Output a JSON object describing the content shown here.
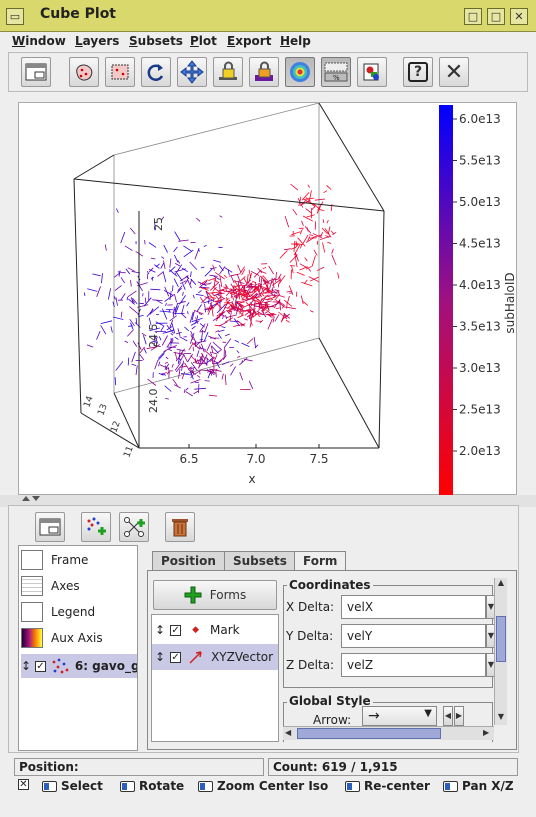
{
  "window": {
    "title": "Cube Plot",
    "controls": [
      "▭",
      "□",
      "✕"
    ]
  },
  "menu": [
    "Window",
    "Layers",
    "Subsets",
    "Plot",
    "Export",
    "Help"
  ],
  "toolbar": {
    "icons": [
      "new-window-icon",
      "subset-blob-icon",
      "subset-rect-icon",
      "rotate-reset-icon",
      "navigate-icon",
      "lock-aspect-icon",
      "lock-icon",
      "density-icon",
      "sketch-icon",
      "export-icon",
      "help-icon",
      "close-icon"
    ],
    "help_glyph": "?",
    "close_glyph": "✕"
  },
  "plot": {
    "x_label": "x",
    "x_ticks": [
      "6.5",
      "7.0",
      "7.5"
    ],
    "y_ticks": [
      "24.0",
      "24.5",
      "25"
    ],
    "z_ticks": [
      "11",
      "12",
      "13",
      "14"
    ],
    "colorbar_label": "subHaloID",
    "colorbar_ticks": [
      "6.0e13",
      "5.5e13",
      "5.0e13",
      "4.5e13",
      "4.0e13",
      "3.5e13",
      "3.0e13",
      "2.5e13",
      "2.0e13"
    ],
    "colors": {
      "low": "#ff0000",
      "high": "#0000ff"
    }
  },
  "layers": {
    "items": [
      {
        "label": "Frame",
        "icon": "frame-icon"
      },
      {
        "label": "Axes",
        "icon": "axes-icon"
      },
      {
        "label": "Legend",
        "icon": "legend-icon"
      },
      {
        "label": "Aux Axis",
        "icon": "aux-axis-icon"
      },
      {
        "label": "6: gavo_g",
        "icon": "scatter-layer-icon",
        "checked": true,
        "selected": true
      }
    ]
  },
  "tabs": [
    "Position",
    "Subsets",
    "Form"
  ],
  "forms": {
    "button_label": "Forms",
    "items": [
      {
        "label": "Mark",
        "checked": true
      },
      {
        "label": "XYZVector",
        "checked": true,
        "selected": true
      }
    ]
  },
  "coordinates": {
    "title": "Coordinates",
    "fields": [
      {
        "label": "X Delta:",
        "value": "velX"
      },
      {
        "label": "Y Delta:",
        "value": "velY"
      },
      {
        "label": "Z Delta:",
        "value": "velZ"
      }
    ]
  },
  "global_style": {
    "title": "Global Style",
    "arrow_label": "Arrow:",
    "arrow_value": "→"
  },
  "status": {
    "position_label": "Position:",
    "count": "Count: 619 / 1,915"
  },
  "mouse_hints": [
    "Select",
    "Rotate",
    "Zoom Center Iso",
    "Re-center",
    "Pan X/Z"
  ]
}
